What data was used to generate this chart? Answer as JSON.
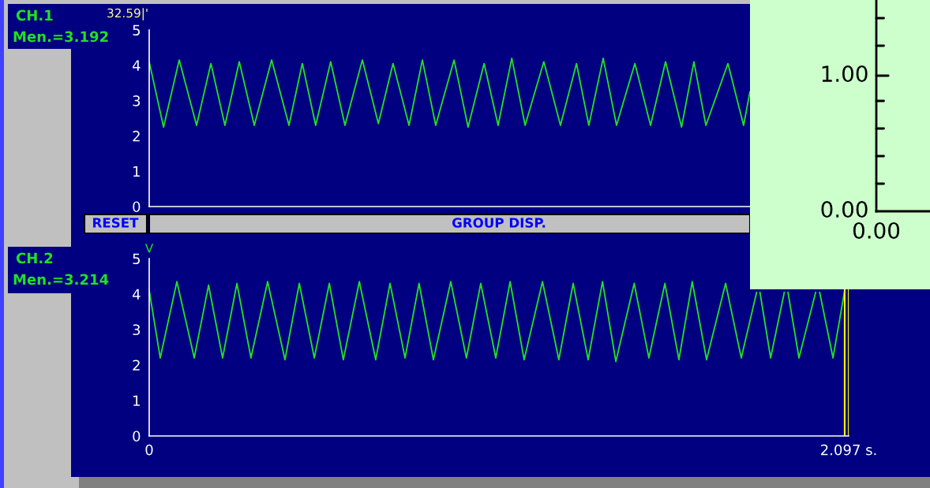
{
  "chart_data": [
    {
      "type": "line",
      "title": "CH.1",
      "subtitle": "Men.=3.192",
      "annotations": [
        "32.59|'",
        "RESET",
        "GROUP DISP."
      ],
      "xlim": [
        0,
        2.097
      ],
      "ylim": [
        0,
        5
      ],
      "yticks": [
        0,
        1,
        2,
        3,
        4,
        5
      ],
      "tick_labels": "y",
      "grid": false,
      "marker": "none",
      "line_style": "solid",
      "series": [
        {
          "color": "#22e022",
          "x": [
            0,
            0.043,
            0.09,
            0.142,
            0.185,
            0.227,
            0.27,
            0.315,
            0.367,
            0.419,
            0.459,
            0.499,
            0.544,
            0.587,
            0.639,
            0.687,
            0.731,
            0.779,
            0.819,
            0.859,
            0.914,
            0.956,
            1.004,
            1.046,
            1.087,
            1.127,
            1.183,
            1.233,
            1.281,
            1.318,
            1.361,
            1.401,
            1.456,
            1.503,
            1.548,
            1.596,
            1.633,
            1.669,
            1.735,
            1.782,
            1.801
          ],
          "values": [
            4.1,
            2.25,
            4.15,
            2.3,
            4.05,
            2.3,
            4.1,
            2.3,
            4.15,
            2.3,
            4.05,
            2.3,
            4.1,
            2.3,
            4.15,
            2.35,
            4.05,
            2.3,
            4.15,
            2.3,
            4.15,
            2.25,
            4.05,
            2.3,
            4.2,
            2.3,
            4.1,
            2.3,
            4.05,
            2.3,
            4.2,
            2.3,
            4.05,
            2.3,
            4.1,
            2.25,
            4.1,
            2.3,
            4.05,
            2.3,
            3.25
          ]
        }
      ]
    },
    {
      "type": "line",
      "title": "CH.2",
      "subtitle": "Men.=3.214",
      "ylabel": "V",
      "xlim": [
        0,
        2.097
      ],
      "xticks": [
        0,
        {
          "value": 2.097,
          "label": "2.097 s."
        }
      ],
      "ylim": [
        0,
        5
      ],
      "yticks": [
        0,
        1,
        2,
        3,
        4,
        5
      ],
      "grid": false,
      "marker": "none",
      "line_style": "solid",
      "ref_lines": [
        {
          "axis": "x",
          "value": 2.085,
          "color": "#ffff00"
        },
        {
          "axis": "x",
          "value": 2.097,
          "color": "#ffff00"
        }
      ],
      "series": [
        {
          "color": "#22e022",
          "x": [
            0,
            0.033,
            0.083,
            0.135,
            0.178,
            0.22,
            0.263,
            0.305,
            0.355,
            0.407,
            0.45,
            0.495,
            0.54,
            0.582,
            0.63,
            0.679,
            0.722,
            0.767,
            0.809,
            0.852,
            0.904,
            0.951,
            0.994,
            1.039,
            1.082,
            1.124,
            1.179,
            1.228,
            1.271,
            1.316,
            1.359,
            1.399,
            1.454,
            1.498,
            1.546,
            1.588,
            1.628,
            1.671,
            1.728,
            1.775,
            1.821,
            1.827,
            1.831,
            1.863,
            1.904,
            1.91,
            1.915,
            1.948,
            1.998,
            2.005,
            2.01,
            2.05,
            2.085
          ],
          "values": [
            4.1,
            2.2,
            4.35,
            2.2,
            4.25,
            2.2,
            4.3,
            2.2,
            4.35,
            2.15,
            4.3,
            2.2,
            4.3,
            2.15,
            4.35,
            2.15,
            4.3,
            2.2,
            4.3,
            2.15,
            4.35,
            2.2,
            4.3,
            2.2,
            4.35,
            2.15,
            4.35,
            2.15,
            4.3,
            2.15,
            4.35,
            2.1,
            4.3,
            2.2,
            4.3,
            2.15,
            4.35,
            2.15,
            4.3,
            2.2,
            4.05,
            null,
            4.05,
            2.2,
            4.05,
            null,
            4.05,
            2.2,
            4.05,
            null,
            4.05,
            2.2,
            4.1
          ]
        }
      ]
    },
    {
      "type": "other",
      "annotations": [
        "1.00",
        "0.00",
        "0.00"
      ]
    }
  ]
}
